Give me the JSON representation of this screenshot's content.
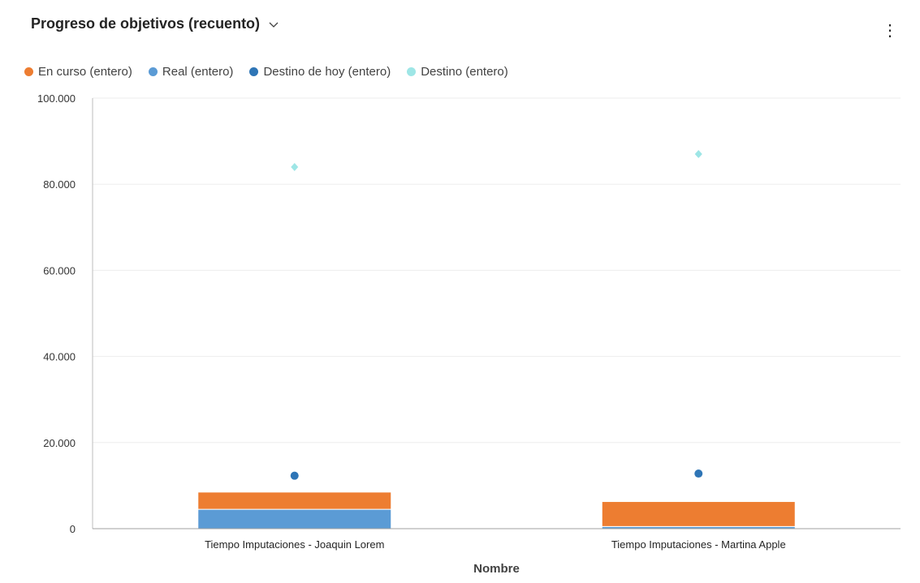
{
  "header": {
    "title": "Progreso de objetivos (recuento)",
    "more_label": "⋮"
  },
  "chart_data": {
    "type": "bar",
    "stacked": true,
    "title": "Progreso de objetivos (recuento)",
    "xlabel": "Nombre",
    "ylabel": "",
    "ylim": [
      0,
      100000
    ],
    "yticks": [
      0,
      20000,
      40000,
      60000,
      80000,
      100000
    ],
    "ytick_labels": [
      "0",
      "20.000",
      "40.000",
      "60.000",
      "80.000",
      "100.000"
    ],
    "categories": [
      "Tiempo Imputaciones - Joaquin Lorem",
      "Tiempo Imputaciones - Martina Apple"
    ],
    "legend_placement": "top-left",
    "series": [
      {
        "name": "En curso (entero)",
        "kind": "bar",
        "color": "#ED7D31",
        "values": [
          4000,
          5800
        ]
      },
      {
        "name": "Real (entero)",
        "kind": "bar",
        "color": "#5B9BD5",
        "values": [
          4500,
          500
        ]
      },
      {
        "name": "Destino de hoy (entero)",
        "kind": "point",
        "marker": "circle",
        "color": "#2E75B6",
        "values": [
          12300,
          12800
        ]
      },
      {
        "name": "Destino (entero)",
        "kind": "point",
        "marker": "diamond",
        "color": "#9EE6E6",
        "values": [
          84000,
          87000
        ]
      }
    ]
  }
}
